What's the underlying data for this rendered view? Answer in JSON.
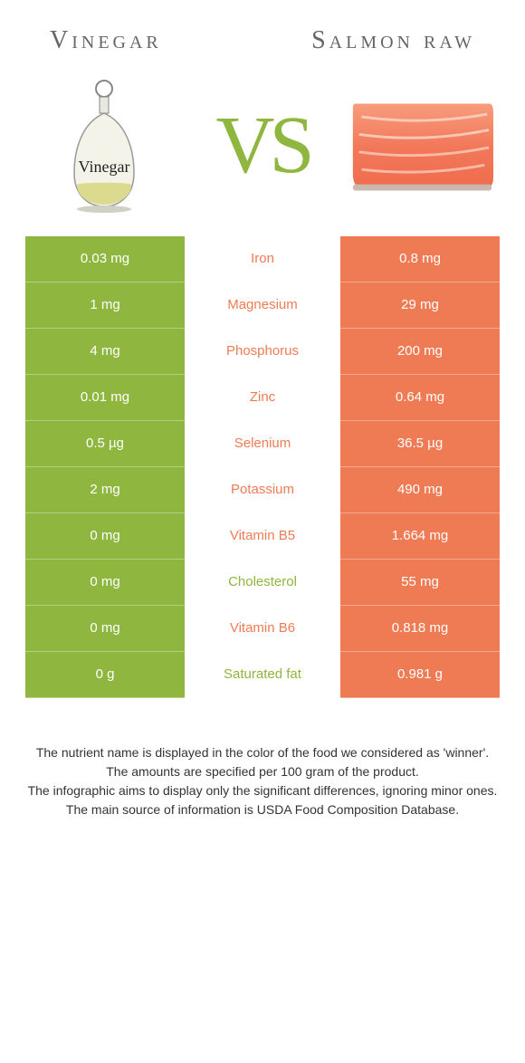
{
  "left": {
    "title": "Vinegar",
    "color": "#8fb63f",
    "image_label": "Vinegar"
  },
  "right": {
    "title": "Salmon raw",
    "color": "#ef7b55"
  },
  "vs_text": "VS",
  "vs_color": "#8fb63f",
  "center_bg": "#ffffff",
  "rows": [
    {
      "left": "0.03 mg",
      "label": "Iron",
      "right": "0.8 mg",
      "winner": "right"
    },
    {
      "left": "1 mg",
      "label": "Magnesium",
      "right": "29 mg",
      "winner": "right"
    },
    {
      "left": "4 mg",
      "label": "Phosphorus",
      "right": "200 mg",
      "winner": "right"
    },
    {
      "left": "0.01 mg",
      "label": "Zinc",
      "right": "0.64 mg",
      "winner": "right"
    },
    {
      "left": "0.5 µg",
      "label": "Selenium",
      "right": "36.5 µg",
      "winner": "right"
    },
    {
      "left": "2 mg",
      "label": "Potassium",
      "right": "490 mg",
      "winner": "right"
    },
    {
      "left": "0 mg",
      "label": "Vitamin B5",
      "right": "1.664 mg",
      "winner": "right"
    },
    {
      "left": "0 mg",
      "label": "Cholesterol",
      "right": "55 mg",
      "winner": "left"
    },
    {
      "left": "0 mg",
      "label": "Vitamin B6",
      "right": "0.818 mg",
      "winner": "right"
    },
    {
      "left": "0 g",
      "label": "Saturated fat",
      "right": "0.981 g",
      "winner": "left"
    }
  ],
  "footer": {
    "line1": "The nutrient name is displayed in the color of the food we considered as 'winner'.",
    "line2": "The amounts are specified per 100 gram of the product.",
    "line3": "The infographic aims to display only the significant differences, ignoring minor ones.",
    "line4": "The main source of information is USDA Food Composition Database."
  },
  "table_row_height": 51,
  "font_size_cell": 15,
  "font_size_title": 28
}
